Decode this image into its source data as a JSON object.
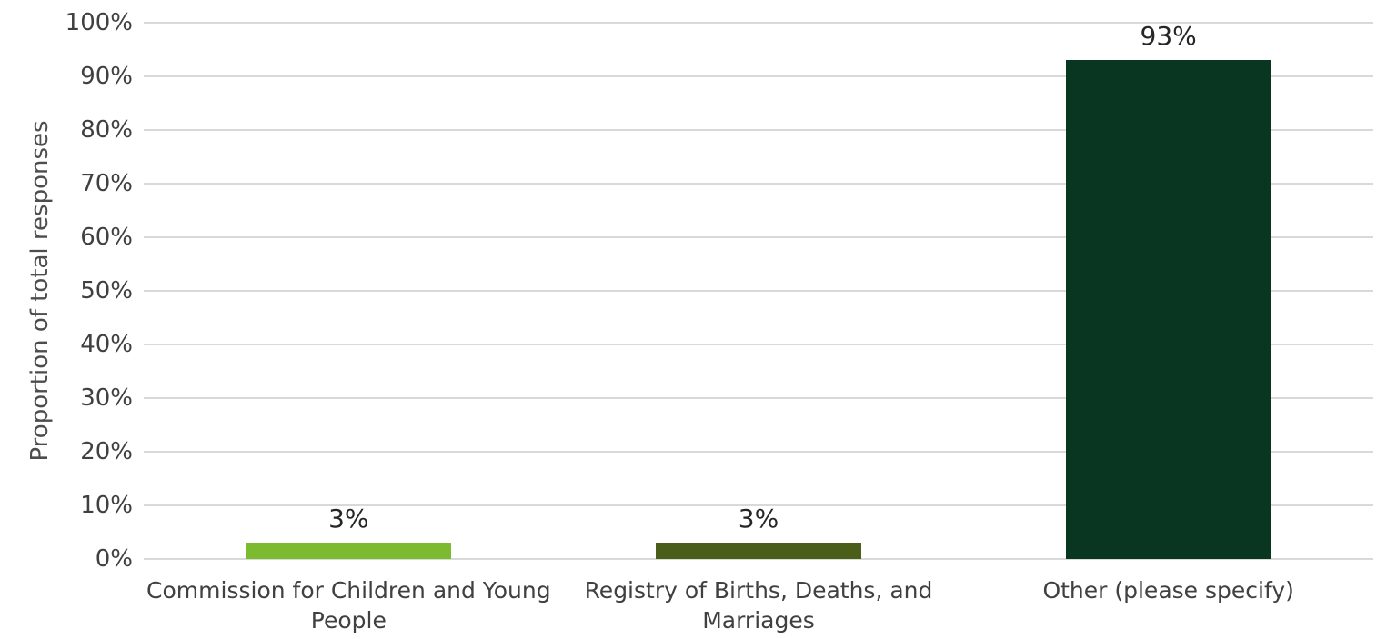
{
  "chart_data": {
    "type": "bar",
    "title": "",
    "xlabel": "",
    "ylabel": "Proportion of total responses",
    "categories": [
      "Commission for Children and Young People",
      "Registry of Births, Deaths, and Marriages",
      "Other (please specify)"
    ],
    "values": [
      3,
      3,
      93
    ],
    "value_labels": [
      "3%",
      "3%",
      "93%"
    ],
    "bar_colors": [
      "#7cbb2f",
      "#4b5e19",
      "#083621"
    ],
    "ylim": [
      0,
      100
    ],
    "y_tick_values": [
      0,
      10,
      20,
      30,
      40,
      50,
      60,
      70,
      80,
      90,
      100
    ],
    "y_tick_labels": [
      "0%",
      "10%",
      "20%",
      "30%",
      "40%",
      "50%",
      "60%",
      "70%",
      "80%",
      "90%",
      "100%"
    ],
    "grid": true,
    "gridline_color": "#d9d9d9",
    "legend": null
  }
}
